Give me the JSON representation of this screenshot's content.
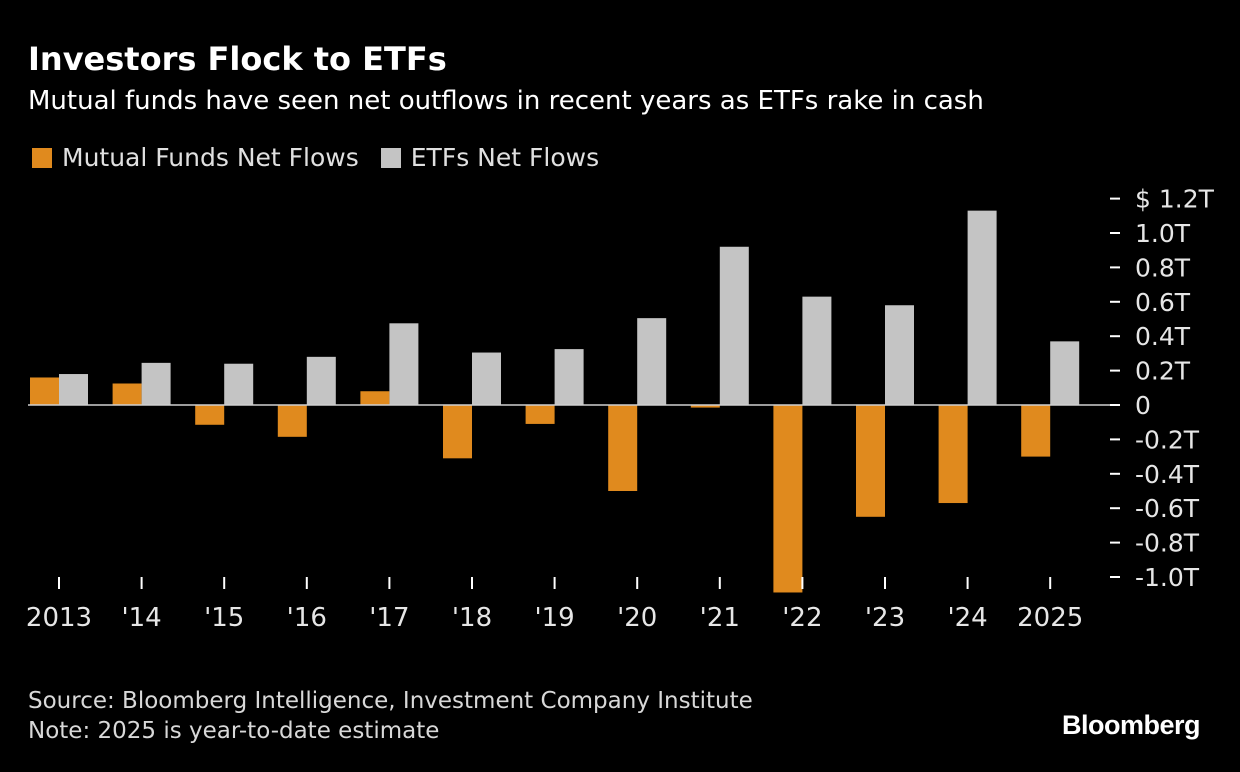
{
  "header": {
    "title": "Investors Flock to ETFs",
    "subtitle": "Mutual funds have seen net outflows in recent years as ETFs rake in cash"
  },
  "legend": [
    {
      "label": "Mutual Funds Net Flows",
      "color": "#E08A1E"
    },
    {
      "label": "ETFs Net Flows",
      "color": "#C4C4C4"
    }
  ],
  "chart_data": {
    "type": "bar",
    "categories": [
      "2013",
      "'14",
      "'15",
      "'16",
      "'17",
      "'18",
      "'19",
      "'20",
      "'21",
      "'22",
      "'23",
      "'24",
      "2025"
    ],
    "series": [
      {
        "name": "Mutual Funds Net Flows",
        "color": "#E08A1E",
        "values": [
          0.16,
          0.125,
          -0.115,
          -0.185,
          0.08,
          -0.31,
          -0.11,
          -0.5,
          -0.015,
          -1.09,
          -0.65,
          -0.57,
          -0.3
        ]
      },
      {
        "name": "ETFs Net Flows",
        "color": "#C4C4C4",
        "values": [
          0.18,
          0.245,
          0.24,
          0.28,
          0.475,
          0.305,
          0.325,
          0.505,
          0.92,
          0.63,
          0.58,
          1.13,
          0.37
        ]
      }
    ],
    "y_ticks": [
      {
        "value": 1.2,
        "label": "$ 1.2T"
      },
      {
        "value": 1.0,
        "label": "1.0T"
      },
      {
        "value": 0.8,
        "label": "0.8T"
      },
      {
        "value": 0.6,
        "label": "0.6T"
      },
      {
        "value": 0.4,
        "label": "0.4T"
      },
      {
        "value": 0.2,
        "label": "0.2T"
      },
      {
        "value": 0,
        "label": "0"
      },
      {
        "value": -0.2,
        "label": "-0.2T"
      },
      {
        "value": -0.4,
        "label": "-0.4T"
      },
      {
        "value": -0.6,
        "label": "-0.6T"
      },
      {
        "value": -0.8,
        "label": "-0.8T"
      },
      {
        "value": -1.0,
        "label": "-1.0T"
      }
    ],
    "ylim": [
      -1.0,
      1.2
    ],
    "axis_position": "right",
    "grid": false,
    "legend_position": "top-left"
  },
  "footer": {
    "source": "Source: Bloomberg Intelligence, Investment Company Institute",
    "note": "Note: 2025 is year-to-date estimate",
    "logo": "Bloomberg"
  }
}
